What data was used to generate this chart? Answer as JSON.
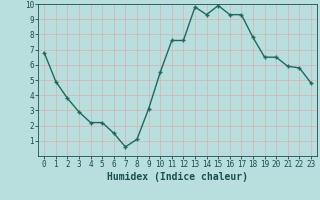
{
  "x": [
    0,
    1,
    2,
    3,
    4,
    5,
    6,
    7,
    8,
    9,
    10,
    11,
    12,
    13,
    14,
    15,
    16,
    17,
    18,
    19,
    20,
    21,
    22,
    23
  ],
  "y": [
    6.8,
    4.9,
    3.8,
    2.9,
    2.2,
    2.2,
    1.5,
    0.6,
    1.1,
    3.1,
    5.5,
    7.6,
    7.6,
    9.8,
    9.3,
    9.9,
    9.3,
    9.3,
    7.8,
    6.5,
    6.5,
    5.9,
    5.8,
    4.8
  ],
  "bg_color": "#b8dede",
  "line_color": "#1a6b5e",
  "marker_color": "#1a6b5e",
  "grid_color": "#d4b8b8",
  "xlabel": "Humidex (Indice chaleur)",
  "ylim": [
    0,
    10
  ],
  "xlim_min": -0.5,
  "xlim_max": 23.5,
  "yticks": [
    1,
    2,
    3,
    4,
    5,
    6,
    7,
    8,
    9,
    10
  ],
  "xticks": [
    0,
    1,
    2,
    3,
    4,
    5,
    6,
    7,
    8,
    9,
    10,
    11,
    12,
    13,
    14,
    15,
    16,
    17,
    18,
    19,
    20,
    21,
    22,
    23
  ],
  "xlabel_color": "#1a4f4f",
  "tick_color": "#1a4f4f",
  "xlabel_fontsize": 7,
  "tick_fontsize": 5.5,
  "linewidth": 1.0,
  "markersize": 3.0
}
